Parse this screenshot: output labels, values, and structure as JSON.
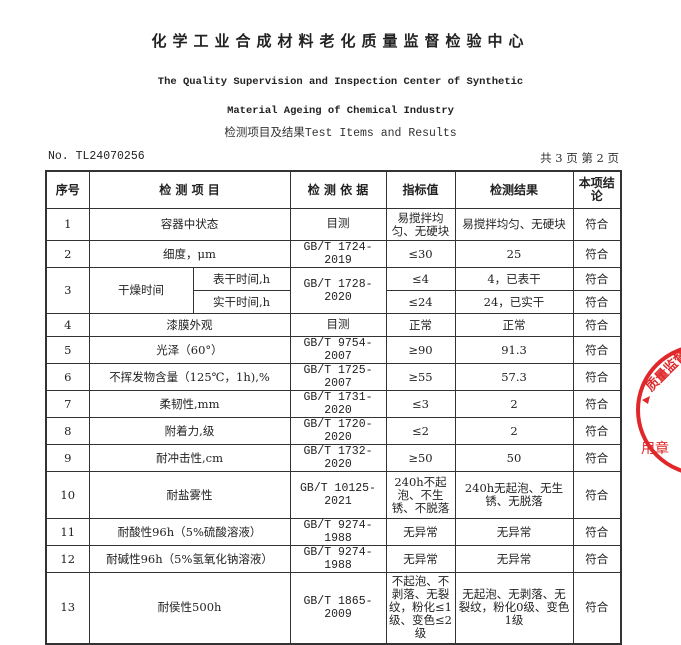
{
  "header": {
    "title_cn": "化学工业合成材料老化质量监督检验中心",
    "title_en_1": "The Quality Supervision and Inspection Center of Synthetic",
    "title_en_2": "Material Ageing of Chemical Industry",
    "section": "检测项目及结果Test Items and Results",
    "report_no": "No. TL24070256",
    "pages": "共 3 页 第 2 页"
  },
  "table": {
    "columns": [
      "序号",
      "检 测 项 目",
      "检 测 依 据",
      "指标值",
      "检测结果",
      "本项结论"
    ],
    "rows": [
      {
        "no": "1",
        "item": "容器中状态",
        "method": "目测",
        "spec": "易搅拌均匀、无硬块",
        "result": "易搅拌均匀、无硬块",
        "verdict": "符合"
      },
      {
        "no": "2",
        "item": "细度，μm",
        "method": "GB/T 1724-2019",
        "spec": "≤30",
        "result": "25",
        "verdict": "符合"
      },
      {
        "no": "3",
        "item": "干燥时间",
        "sub": [
          {
            "item": "表干时间,h",
            "spec": "≤4",
            "result": "4，已表干",
            "verdict": "符合"
          },
          {
            "item": "实干时间,h",
            "spec": "≤24",
            "result": "24，已实干",
            "verdict": "符合"
          }
        ],
        "method": "GB/T 1728-2020"
      },
      {
        "no": "4",
        "item": "漆膜外观",
        "method": "目测",
        "spec": "正常",
        "result": "正常",
        "verdict": "符合"
      },
      {
        "no": "5",
        "item": "光泽（60°）",
        "method": "GB/T 9754-2007",
        "spec": "≥90",
        "result": "91.3",
        "verdict": "符合"
      },
      {
        "no": "6",
        "item": "不挥发物含量（125℃，1h),%",
        "method": "GB/T 1725-2007",
        "spec": "≥55",
        "result": "57.3",
        "verdict": "符合"
      },
      {
        "no": "7",
        "item": "柔韧性,mm",
        "method": "GB/T 1731-2020",
        "spec": "≤3",
        "result": "2",
        "verdict": "符合"
      },
      {
        "no": "8",
        "item": "附着力,级",
        "method": "GB/T 1720-2020",
        "spec": "≤2",
        "result": "2",
        "verdict": "符合"
      },
      {
        "no": "9",
        "item": "耐冲击性,cm",
        "method": "GB/T 1732-2020",
        "spec": "≥50",
        "result": "50",
        "verdict": "符合"
      },
      {
        "no": "10",
        "item": "耐盐雾性",
        "method": "GB/T 10125-2021",
        "spec": "240h不起泡、不生锈、不脱落",
        "result": "240h无起泡、无生锈、无脱落",
        "verdict": "符合"
      },
      {
        "no": "11",
        "item": "耐酸性96h（5%硫酸溶液）",
        "method": "GB/T 9274-1988",
        "spec": "无异常",
        "result": "无异常",
        "verdict": "符合"
      },
      {
        "no": "12",
        "item": "耐碱性96h（5%氢氧化钠溶液）",
        "method": "GB/T 9274-1988",
        "spec": "无异常",
        "result": "无异常",
        "verdict": "符合"
      },
      {
        "no": "13",
        "item": "耐侯性500h",
        "method": "GB/T 1865-2009",
        "spec": "不起泡、不剥落、无裂纹，粉化≤1级、变色≤2级",
        "result": "无起泡、无剥落、无裂纹，粉化0级、变色1级",
        "verdict": "符合"
      }
    ]
  },
  "stamp": {
    "text_top": "质量监督",
    "text_bottom": "用章",
    "color": "#e0282a"
  }
}
